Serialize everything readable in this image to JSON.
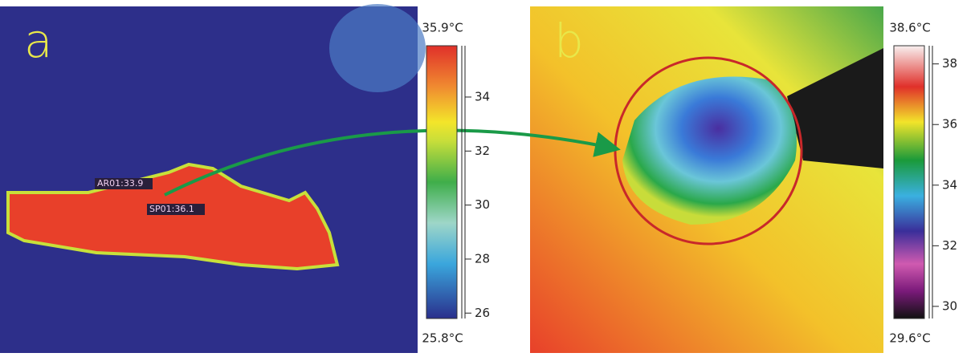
{
  "panels": [
    {
      "label": "a",
      "range_max": {
        "value": 35.9,
        "label": "35.9°C"
      },
      "range_min": {
        "value": 25.8,
        "label": "25.8°C"
      },
      "ticks": [
        26,
        28,
        30,
        32,
        34
      ],
      "annotations": [
        "AR01:33.9",
        "SP01:36.1"
      ]
    },
    {
      "label": "b",
      "range_max": {
        "value": 38.6,
        "label": "38.6°C"
      },
      "range_min": {
        "value": 29.6,
        "label": "29.6°C"
      },
      "ticks": [
        30,
        32,
        34,
        36,
        38
      ]
    }
  ]
}
